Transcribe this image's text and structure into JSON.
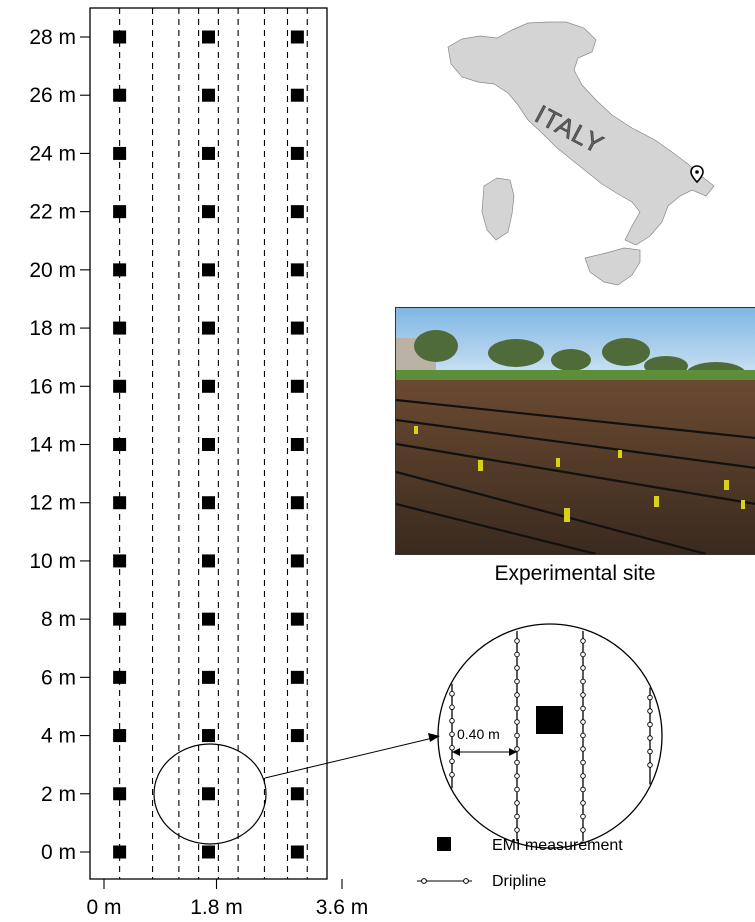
{
  "y_axis": {
    "ticks": [
      0,
      2,
      4,
      6,
      8,
      10,
      12,
      14,
      16,
      18,
      20,
      22,
      24,
      26,
      28
    ],
    "tick_labels": [
      "0 m",
      "2 m",
      "4 m",
      "6 m",
      "8 m",
      "10 m",
      "12 m",
      "14 m",
      "16 m",
      "18 m",
      "20 m",
      "22 m",
      "24 m",
      "26 m",
      "28 m"
    ]
  },
  "x_axis": {
    "ticks": [
      0,
      1.8,
      3.6
    ],
    "tick_labels": [
      "0 m",
      "1.8 m",
      "3.6 m"
    ]
  },
  "measurement_columns_m": [
    0.45,
    1.8,
    3.15
  ],
  "dripline_positions_m": [
    0.45,
    0.95,
    1.35,
    1.65,
    1.95,
    2.25,
    2.65,
    3.0,
    3.3
  ],
  "map": {
    "label": "ITALY",
    "fill_color": "#d4d4d4"
  },
  "photo": {
    "caption": "Experimental site"
  },
  "inset": {
    "spacing_label": "0.40 m"
  },
  "legend": {
    "emi_label": "EMI measurement",
    "dripline_label": "Dripline"
  },
  "colors": {
    "ink": "#000000"
  }
}
